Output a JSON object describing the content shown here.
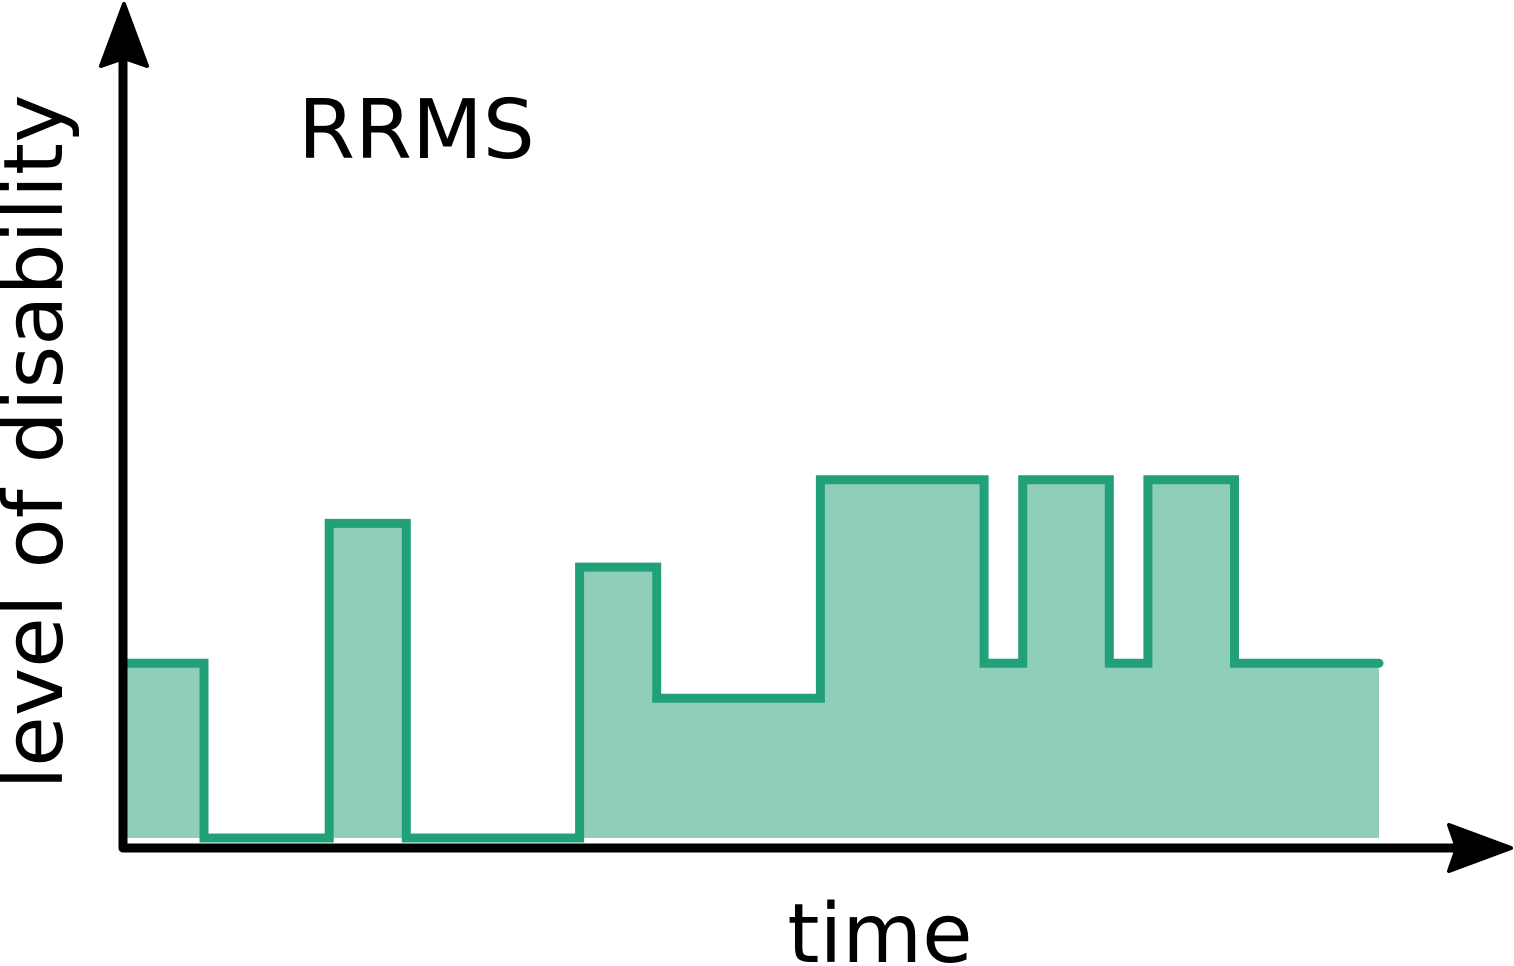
{
  "chart_data": {
    "type": "area",
    "title": "RRMS",
    "xlabel": "time",
    "ylabel": "level of disability",
    "step": true,
    "grid": false,
    "legend": "none",
    "xlim": [
      0,
      130
    ],
    "ylim": [
      0,
      42
    ],
    "series": [
      {
        "x": [
          0,
          8,
          8,
          21,
          21,
          29,
          29,
          47,
          47,
          55,
          55,
          72,
          72,
          89,
          89,
          93,
          93,
          102,
          102,
          106,
          106,
          115,
          115,
          130
        ],
        "values": [
          10,
          10,
          0,
          0,
          18,
          18,
          0,
          0,
          15.5,
          15.5,
          8,
          8,
          20.5,
          20.5,
          10,
          10,
          20.5,
          20.5,
          10,
          10,
          20.5,
          20.5,
          10,
          10
        ]
      }
    ],
    "colors": {
      "stroke": "#22a07a",
      "fill": "#8fcfba",
      "axis": "#000000"
    }
  }
}
